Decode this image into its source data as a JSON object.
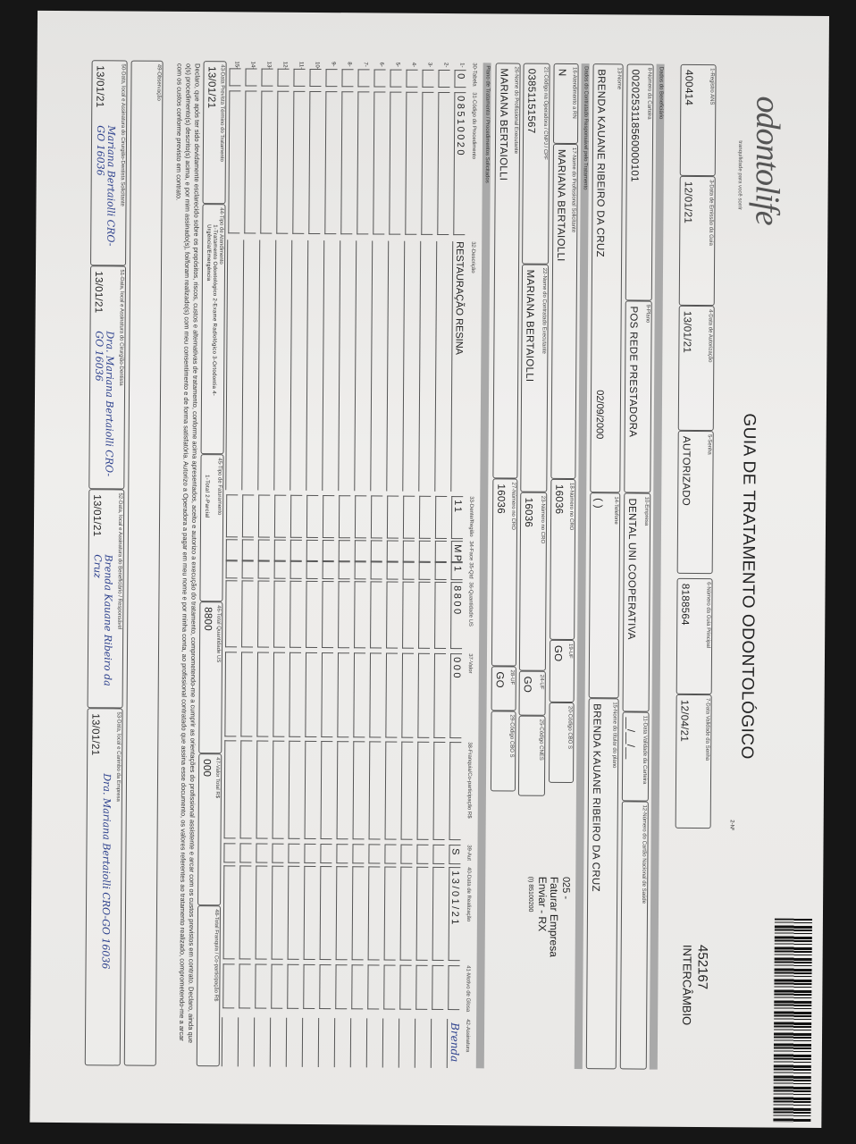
{
  "brand": {
    "logo": "odontolife",
    "tagline": "tranquilidade para você sorrir"
  },
  "title": "GUIA DE TRATAMENTO ODONTOLÓGICO",
  "guide_number": "452167",
  "guide_type": "INTERCÂMBIO",
  "n_label": "2-Nº",
  "row1": [
    {
      "label": "1-Registro ANS",
      "value": "400414"
    },
    {
      "label": "3-Data de Emissão da Guia",
      "value": "12/01/21"
    },
    {
      "label": "4-Data de Autorização",
      "value": "13/01/21"
    },
    {
      "label": "5-Senha",
      "value": "AUTORIZADO"
    },
    {
      "label": "6-Número da Guia Principal",
      "value": "8188564"
    },
    {
      "label": "7-Data Validade da Senha",
      "value": "12/04/21"
    }
  ],
  "section_beneficiary": "Dados do Beneficiário",
  "row2": [
    {
      "label": "8-Número da Carteira",
      "value": "0020253118560000101"
    },
    {
      "label": "9-Plano",
      "value": "POS REDE PRESTADORA"
    },
    {
      "label": "10-Empresa",
      "value": "DENTAL UNI COOPERATIVA"
    },
    {
      "label": "11-Data Validade da Carteira",
      "value": "__/__/__"
    },
    {
      "label": "12-Número do Cartão Nacional de Saúde",
      "value": ""
    }
  ],
  "row3": [
    {
      "label": "13-Nome",
      "value": "BRENDA KAUANE RIBEIRO DA CRUZ",
      "extra": "02/09/2000"
    },
    {
      "label": "14-Telefone",
      "value": "(  )"
    },
    {
      "label": "15-Nome do titular do plano",
      "value": "BRENDA KAUANE RIBEIRO DA CRUZ"
    }
  ],
  "section_contractor": "Dados do Contratado Responsável pelo Tratamento",
  "row4": [
    {
      "label": "16-Atendimento a RN",
      "value": "N"
    },
    {
      "label": "17-Nome do Profissional Solicitante",
      "value": "MARIANA BERTAIOLLI"
    },
    {
      "label": "18-Número no CRO",
      "value": "16036"
    },
    {
      "label": "19-UF",
      "value": "GO"
    },
    {
      "label": "20-Código CBO S",
      "value": ""
    }
  ],
  "row5": [
    {
      "label": "21-Código na Operadora / CNPJ / CPF",
      "value": "03851151567"
    },
    {
      "label": "22-Nome do Contratado Executante",
      "value": "MARIANA BERTAIOLLI"
    },
    {
      "label": "23-Número no CRO",
      "value": "16036"
    },
    {
      "label": "24-UF",
      "value": "GO"
    },
    {
      "label": "25-Código CNES",
      "value": ""
    }
  ],
  "row6": [
    {
      "label": "26-Nome do Profissional Executante",
      "value": "MARIANA BERTAIOLLI"
    },
    {
      "label": "27-Número no CRO",
      "value": "16036"
    },
    {
      "label": "28-UF",
      "value": "GO"
    },
    {
      "label": "29-Código CBO S",
      "value": ""
    }
  ],
  "notes": [
    "025 -",
    "Faturar Empresa",
    "Enviar - RX",
    "(I) 85100200"
  ],
  "section_plan": "Plano de Tratamento / Procedimentos Solicitados",
  "columns": [
    "30-Tabela",
    "31-Código do Procedimento",
    "32-Descrição",
    "33-Dente/Região",
    "34-Face",
    "35-Qtd",
    "36-Quantidade US",
    "37-Valor",
    "38-Franquia/Co-participação R$",
    "39-Aut",
    "40-Data de Realização",
    "41-Motivo de Glosa",
    "42-Assinatura"
  ],
  "procedures": [
    {
      "n": "1-",
      "tabela": "0",
      "codigo": "08510020",
      "descricao": "RESTAURAÇÃO RESINA",
      "dente": "11",
      "face": "MP",
      "qtd": "1",
      "qtd_us": "8800",
      "valor": "000",
      "franquia": "",
      "aut": "S",
      "data": "13/01/21",
      "motivo": "",
      "assinatura": "Brenda"
    }
  ],
  "empty_rows": [
    "2-",
    "3-",
    "4-",
    "5-",
    "6-",
    "7-",
    "8-",
    "9-",
    "10-",
    "11-",
    "12-",
    "13-",
    "14-",
    "15-"
  ],
  "totals": [
    {
      "label": "43-Data Prevista Término do Tratamento",
      "value": "13/01/21"
    },
    {
      "label": "44-Tipo de Atendimento",
      "value": "1-Tratamento Odontológico  2-Exame Radiológico  3-Ortodontia  4-Urgência/Emergência"
    },
    {
      "label": "45-Tipo de Faturamento",
      "value": "1-Total  2-Parcial"
    },
    {
      "label": "46-Total Quantidade US",
      "value": "8800"
    },
    {
      "label": "47-Valor Total R$",
      "value": "000"
    },
    {
      "label": "48-Total Franquia / Co-participação R$",
      "value": ""
    }
  ],
  "declaration": "Declaro, que após ter sido devidamente esclarecido sobre os propósitos, riscos, custos e alternativas de tratamento, conforme acima apresentados, aceito e autorizo a execução do tratamento, comprometendo-me a cumprir as orientações do profissional assistente e arcar com os custos previstos em contrato. Declaro, ainda que o(s) procedimento(s) descrito(s) acima, e por mim assinado(s), foi/foram realizado(s) com meu consentimento e de forma satisfatória. Autorizo a Operadora a pagar em meu nome e por minha conta, ao profissional contratado que assina esse documento, os valores referentes ao tratamento realizado, comprometendo-me a arcar com os custos conforme previsto em contrato.",
  "observation_label": "49-Observação",
  "signatures": [
    {
      "label": "50-Data, local e Assinatura do Cirurgião-Dentista Solicitante",
      "date": "13/01/21",
      "sign": "Mariana Bertaiolli  CRO-GO 16036"
    },
    {
      "label": "51-Data, local e Assinatura do Cirurgião-Dentista",
      "date": "13/01/21",
      "sign": "Dra. Mariana Bertaiolli  CRO-GO 16036"
    },
    {
      "label": "52-Data, local e Assinatura do Beneficiário / Responsável",
      "date": "13/01/21",
      "sign": "Brenda Kauane Ribeiro da Cruz"
    },
    {
      "label": "53-Data, local e Carimbo da Empresa",
      "date": "13/01/21",
      "sign": "Dra. Mariana Bertaiolli  CRO-GO 16036"
    }
  ]
}
